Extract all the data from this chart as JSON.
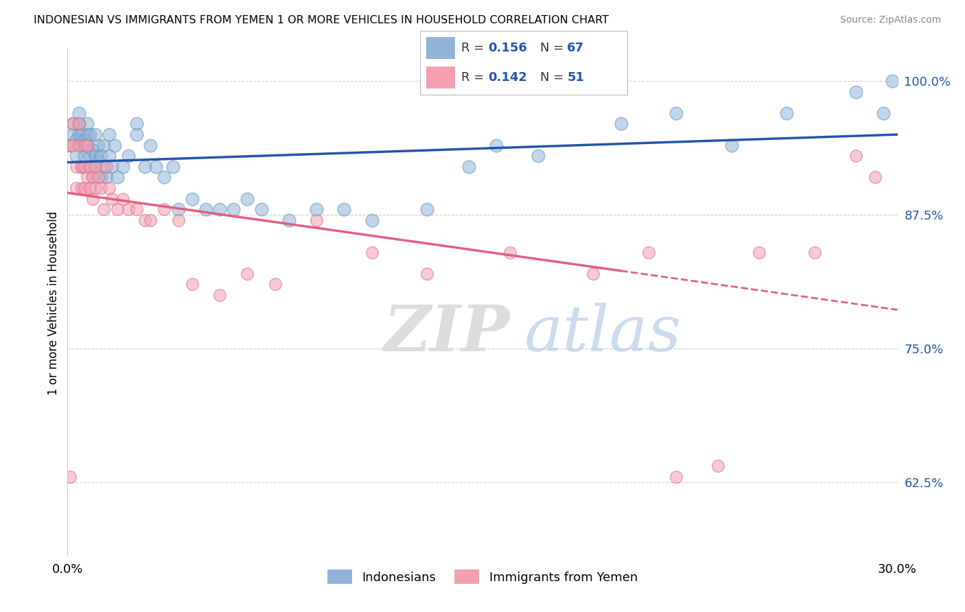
{
  "title": "INDONESIAN VS IMMIGRANTS FROM YEMEN 1 OR MORE VEHICLES IN HOUSEHOLD CORRELATION CHART",
  "source": "Source: ZipAtlas.com",
  "ylabel": "1 or more Vehicles in Household",
  "xlim": [
    0.0,
    0.3
  ],
  "ylim": [
    0.555,
    1.03
  ],
  "yticks": [
    0.625,
    0.75,
    0.875,
    1.0
  ],
  "ytick_labels": [
    "62.5%",
    "75.0%",
    "87.5%",
    "100.0%"
  ],
  "xtick_labels": [
    "0.0%",
    "30.0%"
  ],
  "xtick_positions": [
    0.0,
    0.3
  ],
  "blue_color": "#92B4D8",
  "pink_color": "#F4A0B0",
  "blue_line_color": "#2255AA",
  "pink_line_color": "#E06080",
  "watermark_zip": "ZIP",
  "watermark_atlas": "atlas",
  "indonesian_x": [
    0.001,
    0.002,
    0.002,
    0.003,
    0.003,
    0.004,
    0.004,
    0.004,
    0.005,
    0.005,
    0.005,
    0.006,
    0.006,
    0.007,
    0.007,
    0.007,
    0.008,
    0.008,
    0.008,
    0.009,
    0.009,
    0.01,
    0.01,
    0.01,
    0.011,
    0.011,
    0.012,
    0.012,
    0.013,
    0.013,
    0.014,
    0.015,
    0.015,
    0.016,
    0.017,
    0.018,
    0.02,
    0.022,
    0.025,
    0.025,
    0.028,
    0.03,
    0.032,
    0.035,
    0.038,
    0.04,
    0.045,
    0.05,
    0.055,
    0.06,
    0.065,
    0.07,
    0.08,
    0.09,
    0.1,
    0.11,
    0.13,
    0.145,
    0.155,
    0.17,
    0.2,
    0.22,
    0.24,
    0.26,
    0.285,
    0.295,
    0.298
  ],
  "indonesian_y": [
    0.94,
    0.95,
    0.96,
    0.945,
    0.93,
    0.95,
    0.96,
    0.97,
    0.94,
    0.95,
    0.92,
    0.93,
    0.945,
    0.95,
    0.94,
    0.96,
    0.92,
    0.93,
    0.95,
    0.935,
    0.91,
    0.92,
    0.93,
    0.95,
    0.925,
    0.94,
    0.91,
    0.93,
    0.92,
    0.94,
    0.91,
    0.93,
    0.95,
    0.92,
    0.94,
    0.91,
    0.92,
    0.93,
    0.96,
    0.95,
    0.92,
    0.94,
    0.92,
    0.91,
    0.92,
    0.88,
    0.89,
    0.88,
    0.88,
    0.88,
    0.89,
    0.88,
    0.87,
    0.88,
    0.88,
    0.87,
    0.88,
    0.92,
    0.94,
    0.93,
    0.96,
    0.97,
    0.94,
    0.97,
    0.99,
    0.97,
    1.0
  ],
  "yemen_x": [
    0.001,
    0.002,
    0.002,
    0.003,
    0.003,
    0.004,
    0.004,
    0.005,
    0.005,
    0.006,
    0.006,
    0.006,
    0.007,
    0.007,
    0.008,
    0.008,
    0.009,
    0.009,
    0.01,
    0.01,
    0.011,
    0.012,
    0.013,
    0.014,
    0.015,
    0.016,
    0.018,
    0.02,
    0.022,
    0.025,
    0.028,
    0.03,
    0.035,
    0.04,
    0.045,
    0.055,
    0.065,
    0.075,
    0.09,
    0.11,
    0.13,
    0.16,
    0.19,
    0.21,
    0.22,
    0.235,
    0.25,
    0.27,
    0.285,
    0.292,
    0.001
  ],
  "yemen_y": [
    0.94,
    0.96,
    0.94,
    0.92,
    0.9,
    0.94,
    0.96,
    0.92,
    0.9,
    0.94,
    0.92,
    0.9,
    0.94,
    0.91,
    0.9,
    0.92,
    0.91,
    0.89,
    0.92,
    0.9,
    0.91,
    0.9,
    0.88,
    0.92,
    0.9,
    0.89,
    0.88,
    0.89,
    0.88,
    0.88,
    0.87,
    0.87,
    0.88,
    0.87,
    0.81,
    0.8,
    0.82,
    0.81,
    0.87,
    0.84,
    0.82,
    0.84,
    0.82,
    0.84,
    0.63,
    0.64,
    0.84,
    0.84,
    0.93,
    0.91,
    0.63
  ]
}
